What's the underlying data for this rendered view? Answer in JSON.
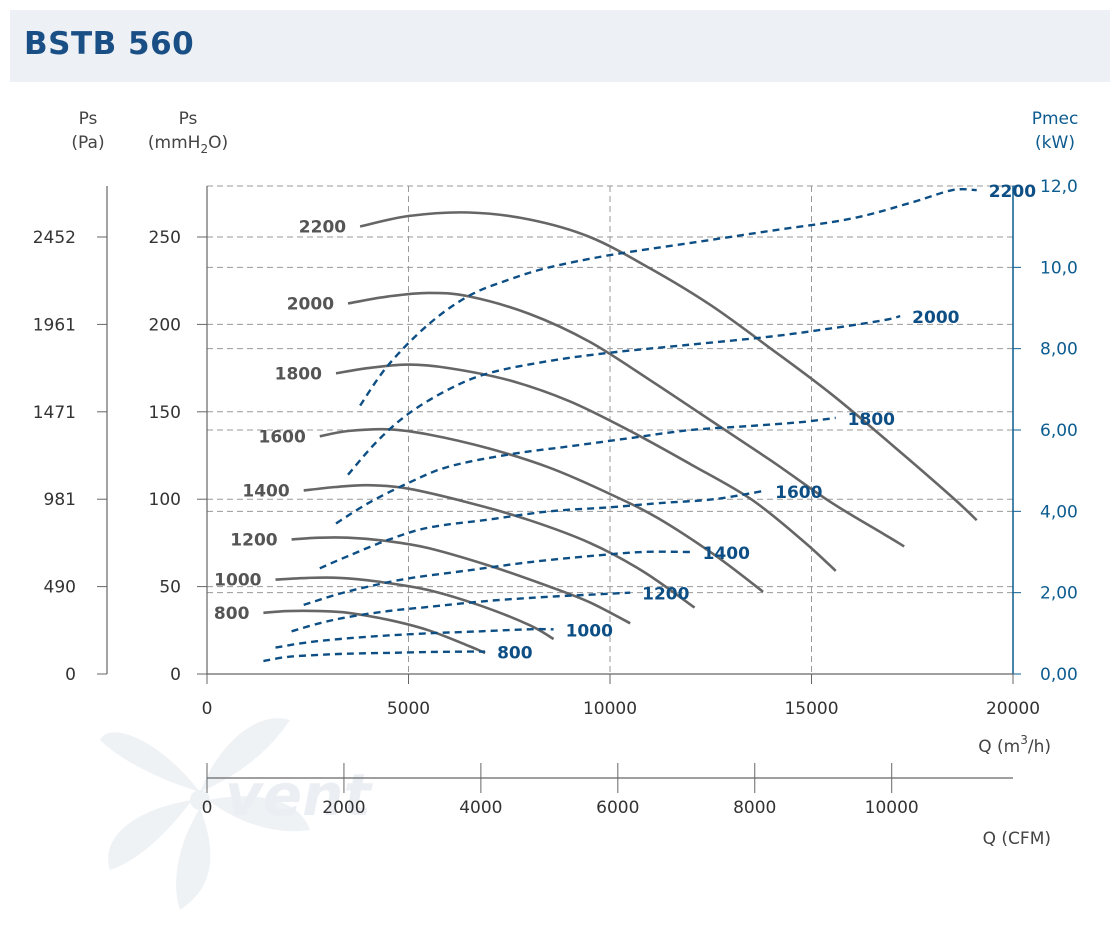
{
  "title": "BSTB 560",
  "colors": {
    "pressure_curve": "#666666",
    "power_curve": "#0d4f85",
    "title": "#1a4f86",
    "grid": "#9a9a9a",
    "axis": "#666666",
    "right_axis": "#0d5c90"
  },
  "watermark": "vent",
  "axes": {
    "pa": {
      "title": "Ps",
      "unit": "(Pa)",
      "ticks": [
        "2452",
        "1961",
        "1471",
        "981",
        "490",
        "0"
      ]
    },
    "mmh2o": {
      "title": "Ps",
      "unit_prefix": "(mmH",
      "unit_sub": "2",
      "unit_suffix": "O)",
      "ticks": [
        "250",
        "200",
        "150",
        "100",
        "50",
        "0"
      ]
    },
    "kw": {
      "title": "Pmec",
      "unit": "(kW)",
      "ticks": [
        "12,0",
        "10,0",
        "8,00",
        "6,00",
        "4,00",
        "2,00",
        "0,00"
      ]
    },
    "m3h": {
      "label_prefix": "Q (m",
      "label_sup": "3",
      "label_suffix": "/h)",
      "ticks": [
        "0",
        "5000",
        "10000",
        "15000",
        "20000"
      ]
    },
    "cfm": {
      "label": "Q (CFM)",
      "ticks": [
        "0",
        "2000",
        "4000",
        "6000",
        "8000",
        "10000"
      ]
    }
  },
  "chart_data": {
    "type": "line",
    "title": "BSTB 560",
    "xlabel": "Q (m3/h)",
    "xlabel_secondary": "Q (CFM)",
    "ylabel": "Ps (mmH2O)",
    "ylabel_secondary": "Ps (Pa)",
    "ylabel_right": "Pmec (kW)",
    "xlim": [
      0,
      20000
    ],
    "ylim": [
      0,
      280
    ],
    "ylim_right": [
      0,
      12
    ],
    "grid": true,
    "pressure_series": [
      {
        "name": "2200",
        "x": [
          3800,
          5000,
          6500,
          8000,
          9500,
          11000,
          12500,
          14000,
          15500,
          17000,
          18500,
          19100
        ],
        "y": [
          256,
          262,
          264,
          260,
          250,
          232,
          211,
          186,
          160,
          131,
          101,
          88
        ]
      },
      {
        "name": "2000",
        "x": [
          3500,
          4500,
          5500,
          6500,
          8000,
          9500,
          11000,
          12500,
          14000,
          15500,
          16800,
          17300
        ],
        "y": [
          212,
          216,
          218,
          216,
          206,
          190,
          168,
          145,
          122,
          98,
          80,
          73
        ]
      },
      {
        "name": "1800",
        "x": [
          3200,
          4000,
          5000,
          6000,
          7500,
          9000,
          10500,
          12000,
          13500,
          14800,
          15600
        ],
        "y": [
          172,
          175,
          177,
          175,
          168,
          156,
          139,
          120,
          100,
          76,
          59
        ]
      },
      {
        "name": "1600",
        "x": [
          2800,
          3500,
          4500,
          5500,
          7000,
          8500,
          10000,
          11200,
          12600,
          13800
        ],
        "y": [
          136,
          139,
          140,
          137,
          129,
          118,
          103,
          89,
          68,
          47
        ]
      },
      {
        "name": "1400",
        "x": [
          2400,
          3200,
          4000,
          5000,
          6500,
          8000,
          9500,
          10800,
          12100
        ],
        "y": [
          105,
          107,
          108,
          106,
          98,
          88,
          75,
          59,
          38
        ]
      },
      {
        "name": "1200",
        "x": [
          2100,
          2800,
          3500,
          4500,
          5500,
          7000,
          8500,
          9500,
          10500
        ],
        "y": [
          77,
          78,
          78,
          76,
          72,
          62,
          50,
          41,
          29
        ]
      },
      {
        "name": "1000",
        "x": [
          1700,
          2500,
          3300,
          4200,
          5500,
          6800,
          8000,
          8600
        ],
        "y": [
          54,
          55,
          55,
          53,
          48,
          39,
          28,
          20
        ]
      },
      {
        "name": "800",
        "x": [
          1400,
          2000,
          2800,
          3500,
          4500,
          5500,
          6500,
          6900
        ],
        "y": [
          35,
          36,
          36,
          35,
          31,
          25,
          16,
          12
        ]
      }
    ],
    "power_series": [
      {
        "name": "2200",
        "x": [
          3800,
          4500,
          5500,
          6500,
          7500,
          8500,
          10000,
          12000,
          14000,
          16000,
          17500,
          18500,
          19100
        ],
        "y": [
          6.6,
          7.6,
          8.6,
          9.3,
          9.7,
          10.0,
          10.3,
          10.6,
          10.9,
          11.2,
          11.6,
          11.9,
          11.9
        ]
      },
      {
        "name": "2000",
        "x": [
          3500,
          4200,
          5000,
          6000,
          7000,
          8500,
          10000,
          12000,
          14000,
          15500,
          16800,
          17200
        ],
        "y": [
          4.9,
          5.7,
          6.4,
          7.0,
          7.4,
          7.7,
          7.9,
          8.1,
          8.3,
          8.5,
          8.7,
          8.8
        ]
      },
      {
        "name": "1800",
        "x": [
          3200,
          4000,
          5000,
          6000,
          7500,
          9000,
          10500,
          12000,
          13500,
          14800,
          15600
        ],
        "y": [
          3.7,
          4.2,
          4.7,
          5.1,
          5.4,
          5.6,
          5.8,
          6.0,
          6.1,
          6.2,
          6.3
        ]
      },
      {
        "name": "1600",
        "x": [
          2800,
          3500,
          4500,
          5500,
          7000,
          8500,
          10000,
          11200,
          12600,
          13800
        ],
        "y": [
          2.6,
          2.9,
          3.3,
          3.6,
          3.8,
          4.0,
          4.1,
          4.2,
          4.3,
          4.5
        ]
      },
      {
        "name": "1400",
        "x": [
          2400,
          3200,
          4000,
          5000,
          6500,
          8000,
          9500,
          10800,
          12000
        ],
        "y": [
          1.7,
          1.95,
          2.15,
          2.35,
          2.55,
          2.75,
          2.9,
          3.0,
          3.0
        ]
      },
      {
        "name": "1200",
        "x": [
          2100,
          2800,
          3500,
          4500,
          5500,
          7000,
          8500,
          9500,
          10500
        ],
        "y": [
          1.05,
          1.25,
          1.4,
          1.55,
          1.65,
          1.8,
          1.9,
          1.95,
          2.0
        ]
      },
      {
        "name": "1000",
        "x": [
          1700,
          2500,
          3300,
          4200,
          5500,
          6800,
          8000,
          8600
        ],
        "y": [
          0.65,
          0.78,
          0.86,
          0.93,
          1.0,
          1.05,
          1.1,
          1.1
        ]
      },
      {
        "name": "800",
        "x": [
          1400,
          2000,
          2800,
          3500,
          4500,
          5500,
          6500,
          6900
        ],
        "y": [
          0.32,
          0.42,
          0.47,
          0.5,
          0.52,
          0.54,
          0.55,
          0.55
        ]
      }
    ]
  }
}
